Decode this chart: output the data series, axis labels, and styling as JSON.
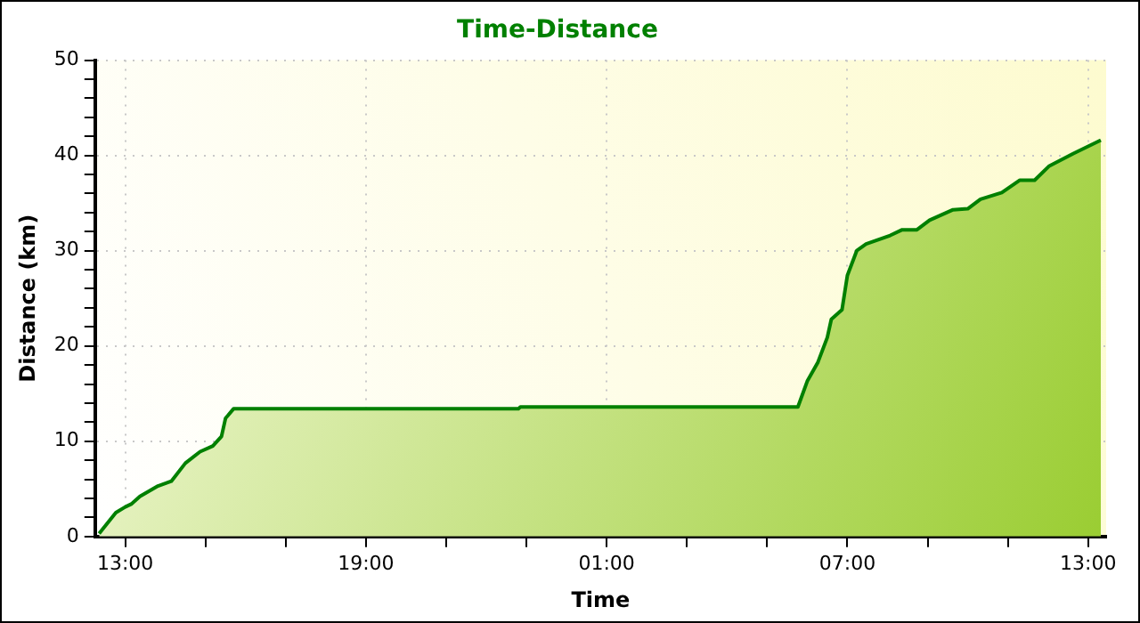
{
  "chart_data": {
    "type": "area",
    "title": "Time-Distance",
    "xlabel": "Time",
    "ylabel": "Distance (km)",
    "xlim": [
      "2000-01-01T12:15",
      "2000-01-02T13:27"
    ],
    "xticks": [
      {
        "value": "2000-01-01T13:00",
        "label": "13:00"
      },
      {
        "value": "2000-01-01T15:00",
        "label": null
      },
      {
        "value": "2000-01-01T17:00",
        "label": null
      },
      {
        "value": "2000-01-01T19:00",
        "label": "19:00"
      },
      {
        "value": "2000-01-01T21:00",
        "label": null
      },
      {
        "value": "2000-01-01T23:00",
        "label": null
      },
      {
        "value": "2000-01-02T01:00",
        "label": "01:00"
      },
      {
        "value": "2000-01-02T03:00",
        "label": null
      },
      {
        "value": "2000-01-02T05:00",
        "label": null
      },
      {
        "value": "2000-01-02T07:00",
        "label": "07:00"
      },
      {
        "value": "2000-01-02T09:00",
        "label": null
      },
      {
        "value": "2000-01-02T11:00",
        "label": null
      },
      {
        "value": "2000-01-02T13:00",
        "label": "13:00"
      }
    ],
    "ylim": [
      0,
      50
    ],
    "yticks": [
      0,
      {
        "value": 2,
        "label": null
      },
      {
        "value": 4,
        "label": null
      },
      {
        "value": 6,
        "label": null
      },
      {
        "value": 8,
        "label": null
      },
      10,
      {
        "value": 12,
        "label": null
      },
      {
        "value": 14,
        "label": null
      },
      {
        "value": 16,
        "label": null
      },
      {
        "value": 18,
        "label": null
      },
      20,
      {
        "value": 22,
        "label": null
      },
      {
        "value": 24,
        "label": null
      },
      {
        "value": 26,
        "label": null
      },
      {
        "value": 28,
        "label": null
      },
      30,
      {
        "value": 32,
        "label": null
      },
      {
        "value": 34,
        "label": null
      },
      {
        "value": 36,
        "label": null
      },
      {
        "value": 38,
        "label": null
      },
      40,
      {
        "value": 42,
        "label": null
      },
      {
        "value": 44,
        "label": null
      },
      {
        "value": 46,
        "label": null
      },
      {
        "value": 48,
        "label": null
      },
      50
    ],
    "grid": true,
    "legend": false,
    "series": [
      {
        "color": "#008000",
        "x": [
          "2000-01-01T12:21",
          "2000-01-01T12:46",
          "2000-01-01T13:00",
          "2000-01-01T13:09",
          "2000-01-01T13:22",
          "2000-01-01T13:49",
          "2000-01-01T14:09",
          "2000-01-01T14:30",
          "2000-01-01T14:52",
          "2000-01-01T15:11",
          "2000-01-01T15:24",
          "2000-01-01T15:30",
          "2000-01-01T15:42",
          "2000-01-01T22:48",
          "2000-01-01T22:51",
          "2000-01-02T05:46",
          "2000-01-02T06:00",
          "2000-01-02T06:16",
          "2000-01-02T06:30",
          "2000-01-02T06:36",
          "2000-01-02T06:52",
          "2000-01-02T07:00",
          "2000-01-02T07:14",
          "2000-01-02T07:28",
          "2000-01-02T08:04",
          "2000-01-02T08:22",
          "2000-01-02T08:44",
          "2000-01-02T09:03",
          "2000-01-02T09:38",
          "2000-01-02T10:00",
          "2000-01-02T10:19",
          "2000-01-02T10:51",
          "2000-01-02T11:18",
          "2000-01-02T11:40",
          "2000-01-02T12:02",
          "2000-01-02T12:38",
          "2000-01-02T13:19"
        ],
        "values": [
          0.3,
          2.5,
          3.1,
          3.4,
          4.2,
          5.3,
          5.8,
          7.7,
          8.9,
          9.5,
          10.5,
          12.4,
          13.4,
          13.4,
          13.6,
          13.6,
          16.3,
          18.3,
          20.9,
          22.8,
          23.8,
          27.4,
          30.0,
          30.7,
          31.6,
          32.2,
          32.2,
          33.2,
          34.3,
          34.4,
          35.4,
          36.1,
          37.4,
          37.4,
          38.9,
          40.2,
          41.6
        ]
      }
    ]
  }
}
